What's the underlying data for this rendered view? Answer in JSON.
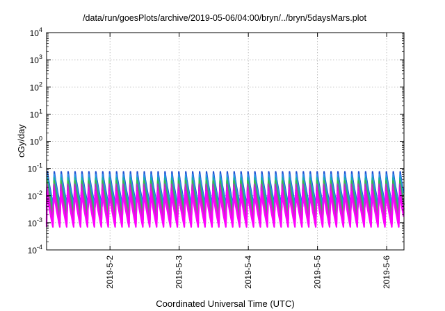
{
  "chart_data": {
    "type": "line",
    "title": "/data/run/goesPlots/archive/2019-05-06/04:00/bryn/../bryn/5daysMars.plot",
    "xlabel": "Coordinated Universal Time (UTC)",
    "ylabel": "cGy/day",
    "y_scale": "log",
    "ylim": [
      0.0001,
      10000
    ],
    "xlim": [
      "2019-05-01 02:00",
      "2019-05-06 06:00"
    ],
    "grid": true,
    "legend": "none",
    "y_ticks": [
      {
        "base": "10",
        "exp": "-4"
      },
      {
        "base": "10",
        "exp": "-3"
      },
      {
        "base": "10",
        "exp": "-2"
      },
      {
        "base": "10",
        "exp": "-1"
      },
      {
        "base": "10",
        "exp": "0"
      },
      {
        "base": "10",
        "exp": "1"
      },
      {
        "base": "10",
        "exp": "2"
      },
      {
        "base": "10",
        "exp": "3"
      },
      {
        "base": "10",
        "exp": "4"
      }
    ],
    "x_ticks": [
      {
        "label": "2019-5-2",
        "date": "2019-05-02 00:00"
      },
      {
        "label": "2019-5-3",
        "date": "2019-05-03 00:00"
      },
      {
        "label": "2019-5-4",
        "date": "2019-05-04 00:00"
      },
      {
        "label": "2019-5-5",
        "date": "2019-05-05 00:00"
      },
      {
        "label": "2019-5-6",
        "date": "2019-05-06 00:00"
      }
    ],
    "series_pattern": {
      "shape": "sawtooth",
      "period_hours": 2.4,
      "start_date": "2019-05-01 02:00",
      "end_date": "2019-05-06 06:00"
    },
    "series": [
      {
        "color": "#1f4fd0",
        "peak": 0.075,
        "trough": 0.004
      },
      {
        "color": "#2f8fe8",
        "peak": 0.06,
        "trough": 0.0035
      },
      {
        "color": "#18b0a8",
        "peak": 0.045,
        "trough": 0.0028
      },
      {
        "color": "#3cb84a",
        "peak": 0.035,
        "trough": 0.002
      },
      {
        "color": "#b03ab8",
        "peak": 0.026,
        "trough": 0.0013
      },
      {
        "color": "#d81bd8",
        "peak": 0.02,
        "trough": 0.0009
      },
      {
        "color": "#ff00ff",
        "peak": 0.014,
        "trough": 0.0007
      }
    ]
  }
}
